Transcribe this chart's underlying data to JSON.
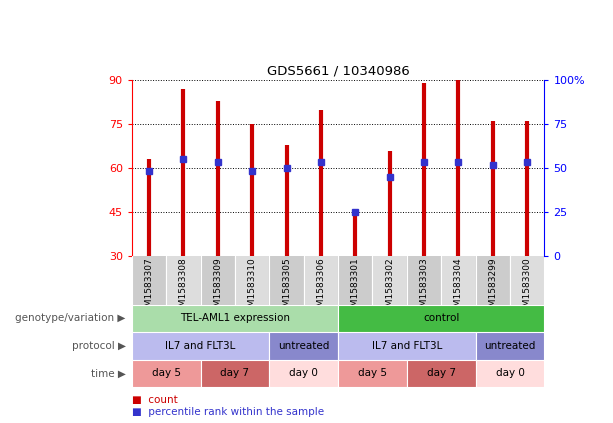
{
  "title": "GDS5661 / 10340986",
  "samples": [
    "GSM1583307",
    "GSM1583308",
    "GSM1583309",
    "GSM1583310",
    "GSM1583305",
    "GSM1583306",
    "GSM1583301",
    "GSM1583302",
    "GSM1583303",
    "GSM1583304",
    "GSM1583299",
    "GSM1583300"
  ],
  "bar_tops": [
    63,
    87,
    83,
    75,
    68,
    80,
    46,
    66,
    89,
    90,
    76,
    76
  ],
  "bar_bottom": 30,
  "percentile_values": [
    59,
    63,
    62,
    59,
    60,
    62,
    45,
    57,
    62,
    62,
    61,
    62
  ],
  "ylim": [
    30,
    90
  ],
  "yticks_left": [
    30,
    45,
    60,
    75,
    90
  ],
  "ytick_labels_right": [
    "0",
    "25",
    "50",
    "75",
    "100%"
  ],
  "bar_color": "#cc0000",
  "percentile_color": "#3333cc",
  "bg_color": "#ffffff",
  "genotype_variation": [
    {
      "label": "TEL-AML1 expression",
      "start": 0,
      "end": 6,
      "color": "#aaddaa"
    },
    {
      "label": "control",
      "start": 6,
      "end": 12,
      "color": "#44bb44"
    }
  ],
  "protocol": [
    {
      "label": "IL7 and FLT3L",
      "start": 0,
      "end": 4,
      "color": "#bbbbee"
    },
    {
      "label": "untreated",
      "start": 4,
      "end": 6,
      "color": "#8888cc"
    },
    {
      "label": "IL7 and FLT3L",
      "start": 6,
      "end": 10,
      "color": "#bbbbee"
    },
    {
      "label": "untreated",
      "start": 10,
      "end": 12,
      "color": "#8888cc"
    }
  ],
  "time": [
    {
      "label": "day 5",
      "start": 0,
      "end": 2,
      "color": "#ee9999"
    },
    {
      "label": "day 7",
      "start": 2,
      "end": 4,
      "color": "#cc6666"
    },
    {
      "label": "day 0",
      "start": 4,
      "end": 6,
      "color": "#ffdddd"
    },
    {
      "label": "day 5",
      "start": 6,
      "end": 8,
      "color": "#ee9999"
    },
    {
      "label": "day 7",
      "start": 8,
      "end": 10,
      "color": "#cc6666"
    },
    {
      "label": "day 0",
      "start": 10,
      "end": 12,
      "color": "#ffdddd"
    }
  ],
  "row_labels": [
    "genotype/variation",
    "protocol",
    "time"
  ],
  "legend_items": [
    {
      "label": "count",
      "color": "#cc0000"
    },
    {
      "label": "percentile rank within the sample",
      "color": "#3333cc"
    }
  ],
  "label_col_even": "#cccccc",
  "label_col_odd": "#dddddd"
}
